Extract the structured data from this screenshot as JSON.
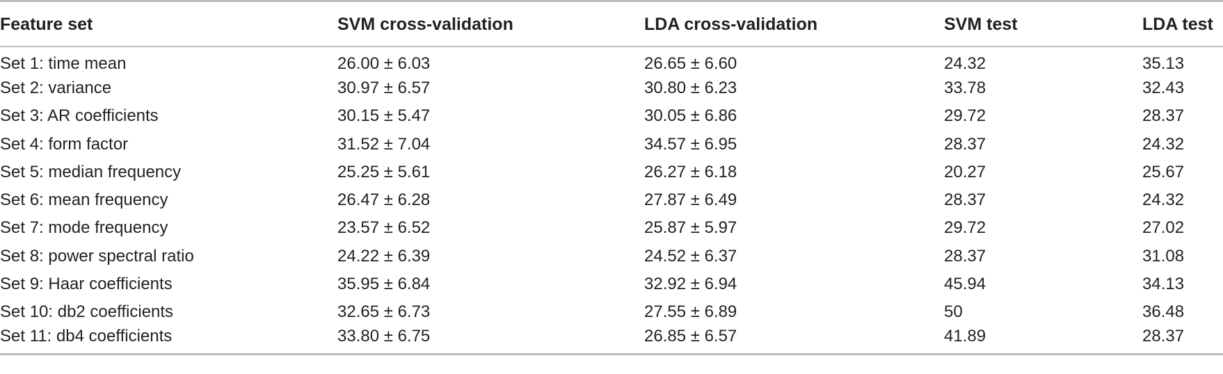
{
  "table": {
    "headers": [
      "Feature set",
      "SVM cross-validation",
      "LDA cross-validation",
      "SVM test",
      "LDA test"
    ],
    "rows": [
      [
        "Set 1: time mean",
        "26.00 ± 6.03",
        "26.65 ± 6.60",
        "24.32",
        "35.13"
      ],
      [
        "Set 2: variance",
        "30.97 ± 6.57",
        "30.80 ± 6.23",
        "33.78",
        "32.43"
      ],
      [
        "Set 3: AR coefficients",
        "30.15 ± 5.47",
        "30.05 ± 6.86",
        "29.72",
        "28.37"
      ],
      [
        "Set 4: form factor",
        "31.52 ± 7.04",
        "34.57 ± 6.95",
        "28.37",
        "24.32"
      ],
      [
        "Set 5: median frequency",
        "25.25 ± 5.61",
        "26.27 ± 6.18",
        "20.27",
        "25.67"
      ],
      [
        "Set 6: mean frequency",
        "26.47 ± 6.28",
        "27.87 ± 6.49",
        "28.37",
        "24.32"
      ],
      [
        "Set 7: mode frequency",
        "23.57 ± 6.52",
        "25.87 ± 5.97",
        "29.72",
        "27.02"
      ],
      [
        "Set 8: power spectral ratio",
        "24.22 ± 6.39",
        "24.52 ± 6.37",
        "28.37",
        "31.08"
      ],
      [
        "Set 9: Haar coefficients",
        "35.95 ± 6.84",
        "32.92 ± 6.94",
        "45.94",
        "34.13"
      ],
      [
        "Set 10: db2 coefficients",
        "32.65 ± 6.73",
        "27.55 ± 6.89",
        "50",
        "36.48"
      ],
      [
        "Set 11: db4 coefficients",
        "33.80 ± 6.75",
        "26.85 ± 6.57",
        "41.89",
        "28.37"
      ]
    ]
  }
}
